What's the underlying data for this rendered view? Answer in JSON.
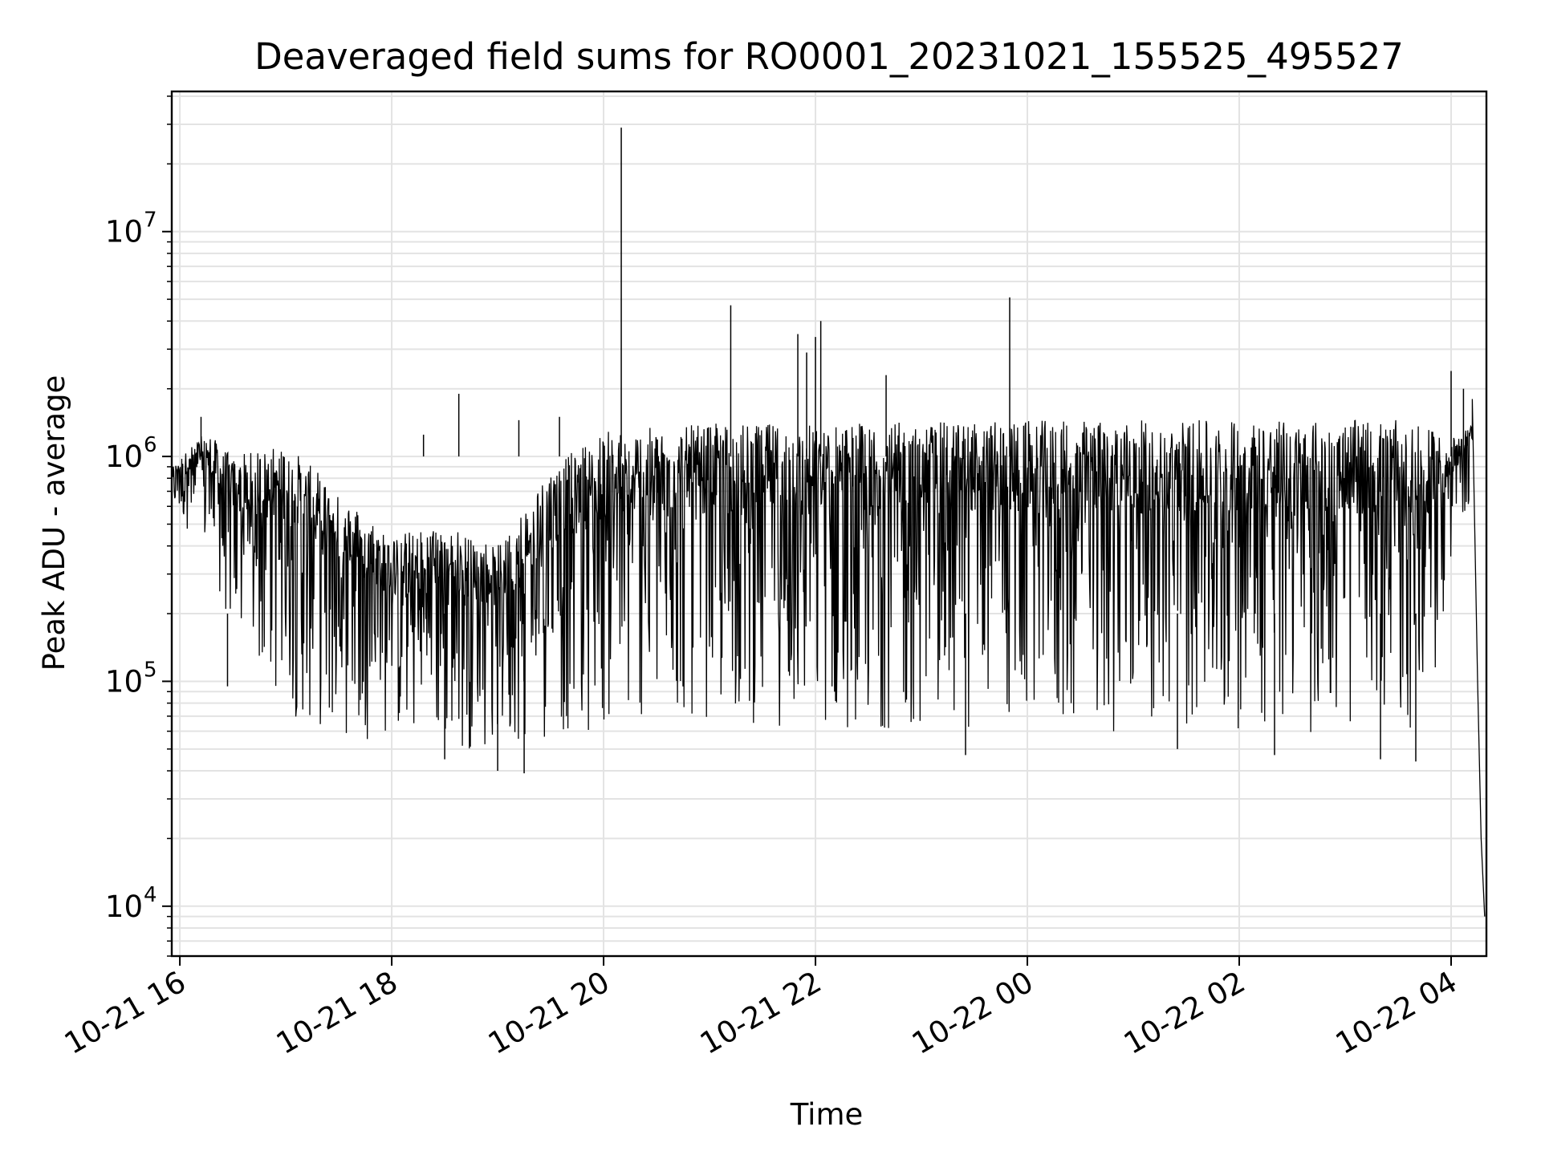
{
  "chart_data": {
    "type": "line",
    "title": "Deaveraged field sums for RO0001_20231021_155525_495527",
    "xlabel": "Time",
    "ylabel": "Peak ADU - average",
    "x_scale": "time",
    "y_scale": "log",
    "xlim": [
      "2023-10-21T15:55:25",
      "2023-10-22T04:20:00"
    ],
    "ylim": [
      6000,
      42000000
    ],
    "grid": true,
    "legend": "none",
    "line_color": "#000000",
    "grid_color": "#e3e3e3",
    "x_ticks": [
      {
        "value": "2023-10-21T16:00:00",
        "label": "10-21 16"
      },
      {
        "value": "2023-10-21T18:00:00",
        "label": "10-21 18"
      },
      {
        "value": "2023-10-21T20:00:00",
        "label": "10-21 20"
      },
      {
        "value": "2023-10-21T22:00:00",
        "label": "10-21 22"
      },
      {
        "value": "2023-10-22T00:00:00",
        "label": "10-22 00"
      },
      {
        "value": "2023-10-22T02:00:00",
        "label": "10-22 02"
      },
      {
        "value": "2023-10-22T04:00:00",
        "label": "10-22 04"
      }
    ],
    "y_ticks": [
      {
        "value": 10000,
        "base": "10",
        "exp": "4"
      },
      {
        "value": 100000,
        "base": "10",
        "exp": "5"
      },
      {
        "value": 1000000,
        "base": "10",
        "exp": "6"
      },
      {
        "value": 10000000,
        "base": "10",
        "exp": "7"
      }
    ],
    "envelope": {
      "x": [
        "2023-10-21T15:55:25",
        "2023-10-21T16:15:00",
        "2023-10-21T16:30:00",
        "2023-10-21T17:00:00",
        "2023-10-21T17:30:00",
        "2023-10-21T18:00:00",
        "2023-10-21T18:30:00",
        "2023-10-21T19:00:00",
        "2023-10-21T19:30:00",
        "2023-10-21T20:00:00",
        "2023-10-21T20:30:00",
        "2023-10-21T21:00:00",
        "2023-10-21T22:00:00",
        "2023-10-22T00:00:00",
        "2023-10-22T02:00:00",
        "2023-10-22T03:30:00",
        "2023-10-22T03:50:00",
        "2023-10-22T04:05:00",
        "2023-10-22T04:15:00"
      ],
      "upper": [
        900000,
        1300000,
        1000000,
        1150000,
        700000,
        450000,
        500000,
        400000,
        900000,
        1300000,
        1350000,
        1400000,
        1400000,
        1450000,
        1450000,
        1450000,
        1300000,
        1200000,
        1600000
      ],
      "lower": [
        600000,
        350000,
        150000,
        70000,
        55000,
        55000,
        50000,
        48000,
        55000,
        60000,
        65000,
        65000,
        60000,
        60000,
        58000,
        55000,
        70000,
        500000,
        700000
      ]
    },
    "spikes": [
      {
        "x": "2023-10-21T16:12:00",
        "y": 1500000
      },
      {
        "x": "2023-10-21T18:18:00",
        "y": 1250000
      },
      {
        "x": "2023-10-21T18:38:00",
        "y": 1900000
      },
      {
        "x": "2023-10-21T19:12:00",
        "y": 1450000
      },
      {
        "x": "2023-10-21T19:35:00",
        "y": 1500000
      },
      {
        "x": "2023-10-21T20:10:00",
        "y": 29000000
      },
      {
        "x": "2023-10-21T21:12:00",
        "y": 4700000
      },
      {
        "x": "2023-10-21T21:50:00",
        "y": 3500000
      },
      {
        "x": "2023-10-21T21:55:00",
        "y": 2900000
      },
      {
        "x": "2023-10-21T22:00:00",
        "y": 3400000
      },
      {
        "x": "2023-10-21T22:03:00",
        "y": 4000000
      },
      {
        "x": "2023-10-21T22:40:00",
        "y": 2300000
      },
      {
        "x": "2023-10-21T23:50:00",
        "y": 5100000
      },
      {
        "x": "2023-10-22T04:00:00",
        "y": 2400000
      },
      {
        "x": "2023-10-22T04:07:00",
        "y": 2000000
      }
    ],
    "dips": [
      {
        "x": "2023-10-21T16:27:00",
        "y": 95000
      },
      {
        "x": "2023-10-21T18:30:00",
        "y": 45000
      },
      {
        "x": "2023-10-21T19:00:00",
        "y": 40000
      },
      {
        "x": "2023-10-21T19:15:00",
        "y": 39000
      },
      {
        "x": "2023-10-21T23:25:00",
        "y": 47000
      },
      {
        "x": "2023-10-22T01:25:00",
        "y": 50000
      },
      {
        "x": "2023-10-22T02:20:00",
        "y": 47000
      },
      {
        "x": "2023-10-22T03:20:00",
        "y": 45000
      },
      {
        "x": "2023-10-22T03:40:00",
        "y": 44000
      }
    ],
    "tail": {
      "x": [
        "2023-10-22T04:12:00",
        "2023-10-22T04:15:00",
        "2023-10-22T04:17:00",
        "2023-10-22T04:19:00"
      ],
      "y": [
        1800000,
        100000,
        20000,
        9000
      ]
    }
  }
}
